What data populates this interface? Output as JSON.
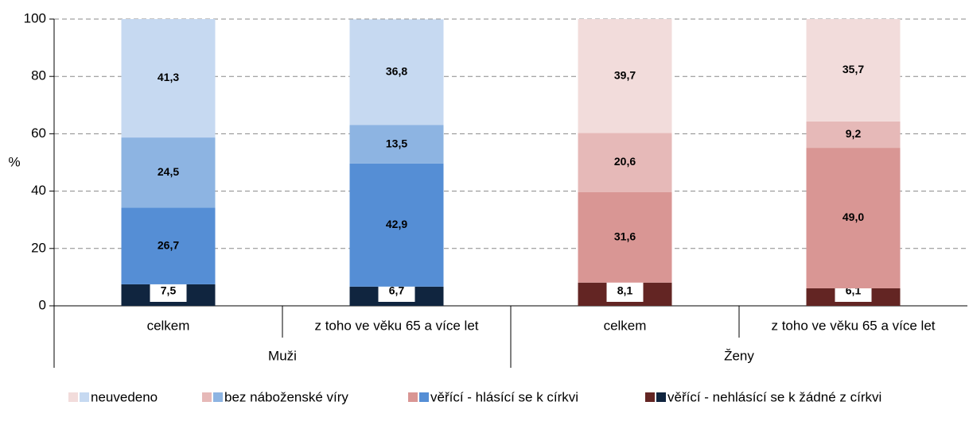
{
  "chart_data": {
    "type": "stacked-bar",
    "y_label": "%",
    "categories": [
      "celkem",
      "z toho ve věku 65 a více let",
      "celkem",
      "z toho ve věku 65 a více let"
    ],
    "groups": [
      "Muži",
      "Ženy"
    ],
    "ylim": [
      0,
      100
    ],
    "yticks": [
      0,
      20,
      40,
      60,
      80,
      100
    ],
    "grid": true,
    "series": [
      {
        "name": "věřící - nehlásící se k žádné z církvi",
        "colors": [
          "#10253f",
          "#10253f",
          "#632523",
          "#632523"
        ],
        "values": [
          7.5,
          6.7,
          8.1,
          6.1
        ],
        "value_labels": [
          "7,5",
          "6,7",
          "8,1",
          "6,1"
        ]
      },
      {
        "name": "věřící - hlásící se k církvi",
        "colors": [
          "#558ed5",
          "#558ed5",
          "#d99694",
          "#d99694"
        ],
        "values": [
          26.7,
          42.9,
          31.6,
          49.0
        ],
        "value_labels": [
          "26,7",
          "42,9",
          "31,6",
          "49,0"
        ]
      },
      {
        "name": "bez náboženské víry",
        "colors": [
          "#8db4e2",
          "#8db4e2",
          "#e6b9b8",
          "#e6b9b8"
        ],
        "values": [
          24.5,
          13.5,
          20.6,
          9.2
        ],
        "value_labels": [
          "24,5",
          "13,5",
          "20,6",
          "9,2"
        ]
      },
      {
        "name": "neuvedeno",
        "colors": [
          "#c6d9f1",
          "#c6d9f1",
          "#f2dcdb",
          "#f2dcdb"
        ],
        "values": [
          41.3,
          36.8,
          39.7,
          35.7
        ],
        "value_labels": [
          "41,3",
          "36,8",
          "39,7",
          "35,7"
        ]
      }
    ]
  }
}
